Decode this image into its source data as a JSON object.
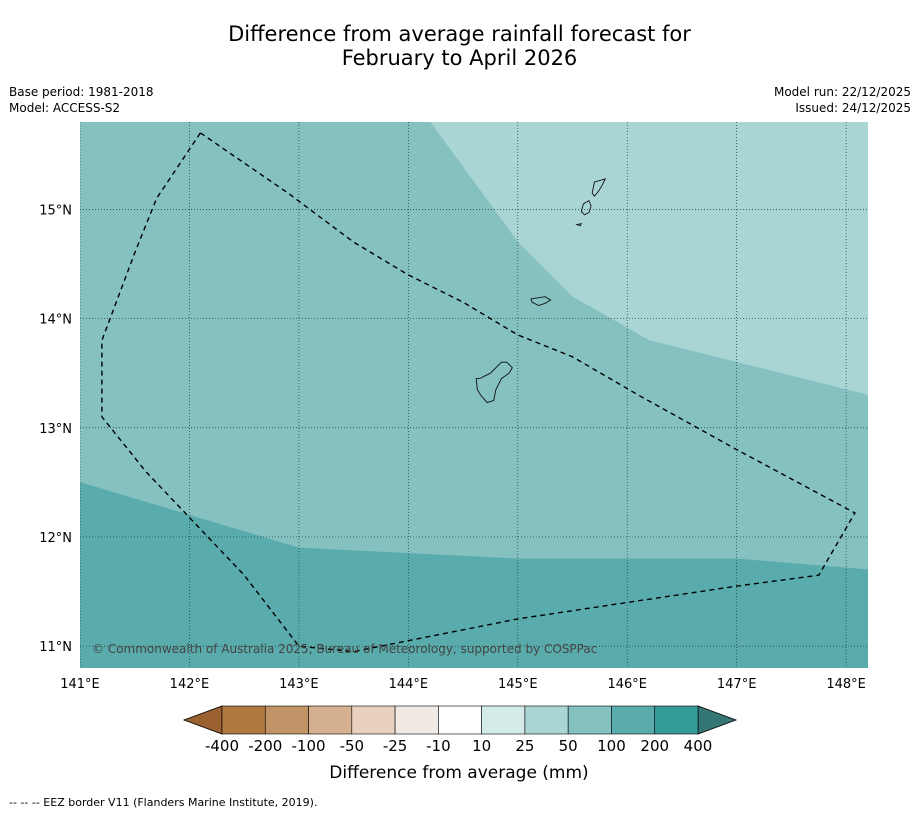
{
  "title_line1": "Difference from average rainfall forecast for",
  "title_line2": "February to April 2026",
  "base_period": "Base period: 1981-2018",
  "model": "Model: ACCESS-S2",
  "model_run": "Model run: 22/12/2025",
  "issued": "Issued: 24/12/2025",
  "copyright": "© Commonwealth of Australia 2025, Bureau of Meteorology, supported by COSPPac",
  "footnote": "--  --  -- EEZ border V11 (Flanders Marine Institute, 2019).",
  "map": {
    "lon_range": [
      141.0,
      148.2
    ],
    "lat_range": [
      10.8,
      15.8
    ],
    "lon_ticks": [
      141,
      142,
      143,
      144,
      145,
      146,
      147,
      148
    ],
    "lon_labels": [
      "141°E",
      "142°E",
      "143°E",
      "144°E",
      "145°E",
      "146°E",
      "147°E",
      "148°E"
    ],
    "lat_ticks": [
      15,
      14,
      13,
      12,
      11
    ],
    "lat_labels": [
      "15°N",
      "14°N",
      "13°N",
      "12°N",
      "11°N"
    ],
    "regions": [
      {
        "category": "50 to 100 mm",
        "color": "#aad5d5",
        "polygon": [
          [
            144.2,
            15.8
          ],
          [
            145.0,
            14.7
          ],
          [
            145.5,
            14.2
          ],
          [
            146.2,
            13.8
          ],
          [
            147.0,
            13.6
          ],
          [
            148.2,
            13.3
          ],
          [
            148.2,
            15.8
          ]
        ]
      },
      {
        "category": "100 to 200 mm",
        "color": "#84c1c0",
        "polygon": [
          [
            141.0,
            15.8
          ],
          [
            144.2,
            15.8
          ],
          [
            145.0,
            14.7
          ],
          [
            145.5,
            14.2
          ],
          [
            146.2,
            13.8
          ],
          [
            147.0,
            13.6
          ],
          [
            148.2,
            13.3
          ],
          [
            148.2,
            11.7
          ],
          [
            147.0,
            11.8
          ],
          [
            145.0,
            11.8
          ],
          [
            143.0,
            11.9
          ],
          [
            142.0,
            12.2
          ],
          [
            141.0,
            12.5
          ]
        ]
      },
      {
        "category": "200 to 400 mm",
        "color": "#5aabab",
        "polygon": [
          [
            141.0,
            12.5
          ],
          [
            142.0,
            12.2
          ],
          [
            143.0,
            11.9
          ],
          [
            145.0,
            11.8
          ],
          [
            147.0,
            11.8
          ],
          [
            148.2,
            11.7
          ],
          [
            148.2,
            10.8
          ],
          [
            141.0,
            10.8
          ]
        ]
      }
    ],
    "eez_border": [
      [
        142.1,
        15.7
      ],
      [
        142.9,
        15.15
      ],
      [
        143.5,
        14.7
      ],
      [
        144.0,
        14.4
      ],
      [
        144.5,
        14.15
      ],
      [
        145.0,
        13.85
      ],
      [
        145.5,
        13.65
      ],
      [
        146.1,
        13.3
      ],
      [
        147.0,
        12.8
      ],
      [
        148.08,
        12.22
      ],
      [
        147.75,
        11.65
      ],
      [
        147.0,
        11.55
      ],
      [
        146.0,
        11.4
      ],
      [
        145.0,
        11.25
      ],
      [
        144.0,
        11.05
      ],
      [
        143.5,
        10.95
      ],
      [
        143.0,
        11.0
      ],
      [
        142.5,
        11.65
      ],
      [
        141.6,
        12.6
      ],
      [
        141.2,
        13.1
      ],
      [
        141.2,
        13.8
      ],
      [
        141.5,
        14.6
      ],
      [
        141.7,
        15.1
      ],
      [
        142.1,
        15.7
      ]
    ],
    "islands": [
      {
        "name": "Guam",
        "polygon": [
          [
            144.65,
            13.45
          ],
          [
            144.75,
            13.5
          ],
          [
            144.85,
            13.6
          ],
          [
            144.9,
            13.6
          ],
          [
            144.95,
            13.55
          ],
          [
            144.92,
            13.5
          ],
          [
            144.85,
            13.45
          ],
          [
            144.8,
            13.35
          ],
          [
            144.78,
            13.25
          ],
          [
            144.72,
            13.23
          ],
          [
            144.66,
            13.3
          ],
          [
            144.63,
            13.35
          ],
          [
            144.62,
            13.45
          ]
        ]
      },
      {
        "name": "Rota",
        "polygon": [
          [
            145.12,
            14.18
          ],
          [
            145.25,
            14.2
          ],
          [
            145.3,
            14.17
          ],
          [
            145.25,
            14.14
          ],
          [
            145.19,
            14.12
          ],
          [
            145.13,
            14.15
          ]
        ]
      },
      {
        "name": "Tinian",
        "polygon": [
          [
            145.6,
            15.05
          ],
          [
            145.65,
            15.08
          ],
          [
            145.67,
            15.03
          ],
          [
            145.65,
            14.97
          ],
          [
            145.61,
            14.95
          ],
          [
            145.58,
            14.98
          ]
        ]
      },
      {
        "name": "Saipan",
        "polygon": [
          [
            145.7,
            15.25
          ],
          [
            145.8,
            15.28
          ],
          [
            145.77,
            15.22
          ],
          [
            145.74,
            15.17
          ],
          [
            145.7,
            15.12
          ],
          [
            145.68,
            15.15
          ]
        ]
      },
      {
        "name": "Aguijan",
        "polygon": [
          [
            145.54,
            14.86
          ],
          [
            145.58,
            14.87
          ],
          [
            145.57,
            14.85
          ]
        ]
      }
    ]
  },
  "colorbar": {
    "title": "Difference from average (mm)",
    "labels": [
      "-400",
      "-200",
      "-100",
      "-50",
      "-25",
      "-10",
      "10",
      "25",
      "50",
      "100",
      "200",
      "400"
    ],
    "colors": [
      "#b07940",
      "#c19468",
      "#d4b090",
      "#e8d2bf",
      "#f0e9e4",
      "#ffffff",
      "#d4ebea",
      "#aad5d5",
      "#84c1c0",
      "#5aabab",
      "#349b99"
    ],
    "under_color": "#9b6130",
    "over_color": "#357777"
  }
}
